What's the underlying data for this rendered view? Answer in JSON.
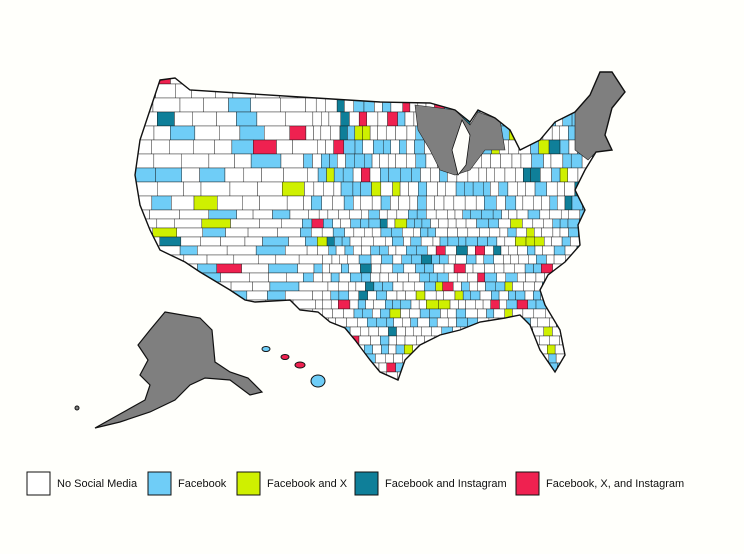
{
  "legend": {
    "items": [
      {
        "label": "No Social Media",
        "color": "#ffffff"
      },
      {
        "label": "Facebook",
        "color": "#6fcdf7"
      },
      {
        "label": "Facebook and X",
        "color": "#cff000"
      },
      {
        "label": "Facebook and Instagram",
        "color": "#0f7f99"
      },
      {
        "label": "Facebook, X, and Instagram",
        "color": "#ef2150"
      }
    ]
  }
}
